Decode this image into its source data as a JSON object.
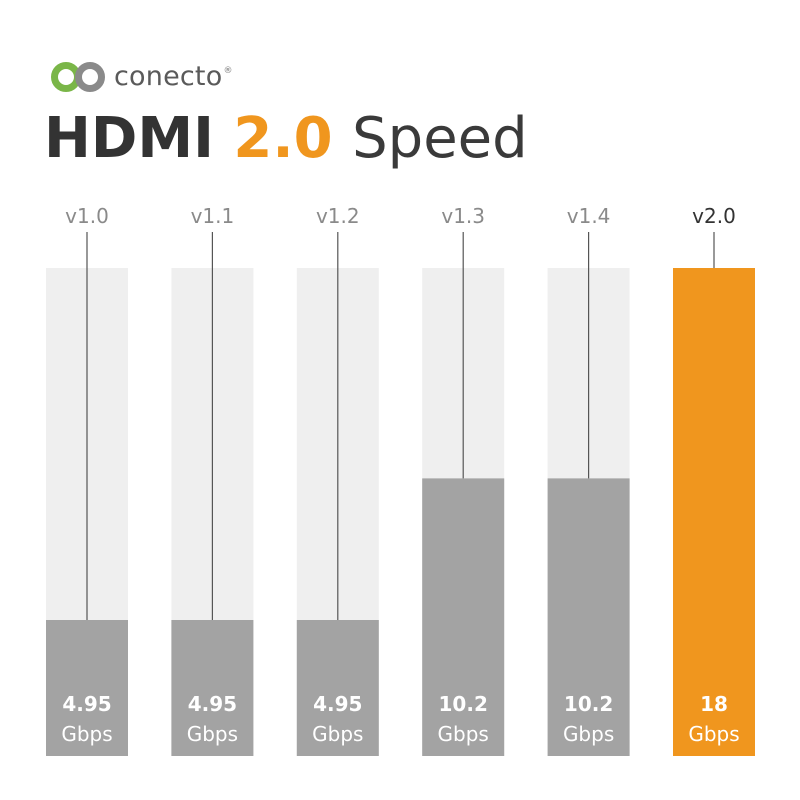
{
  "brand": {
    "name": "conecto",
    "registered_mark": "®",
    "colors": {
      "green": "#7ab648",
      "gray": "#8a8a8a"
    }
  },
  "header": {
    "title_part1": "HDMI",
    "title_part2": "2.0",
    "title_part3": "Speed"
  },
  "chart_data": {
    "type": "bar",
    "categories": [
      "v1.0",
      "v1.1",
      "v1.2",
      "v1.3",
      "v1.4",
      "v2.0"
    ],
    "values": [
      4.95,
      4.95,
      4.95,
      10.2,
      10.2,
      18
    ],
    "value_labels": [
      "4.95",
      "4.95",
      "4.95",
      "10.2",
      "10.2",
      "18"
    ],
    "unit": "Gbps",
    "title": "HDMI 2.0 Speed",
    "xlabel": "",
    "ylabel": "",
    "ylim": [
      0,
      18
    ],
    "highlight_index": 5,
    "colors": {
      "track": "#efefef",
      "bar": "#a3a3a3",
      "highlight": "#f0961e",
      "label": "#8a8a8a",
      "highlight_label": "#333333",
      "line": "#555555"
    }
  }
}
